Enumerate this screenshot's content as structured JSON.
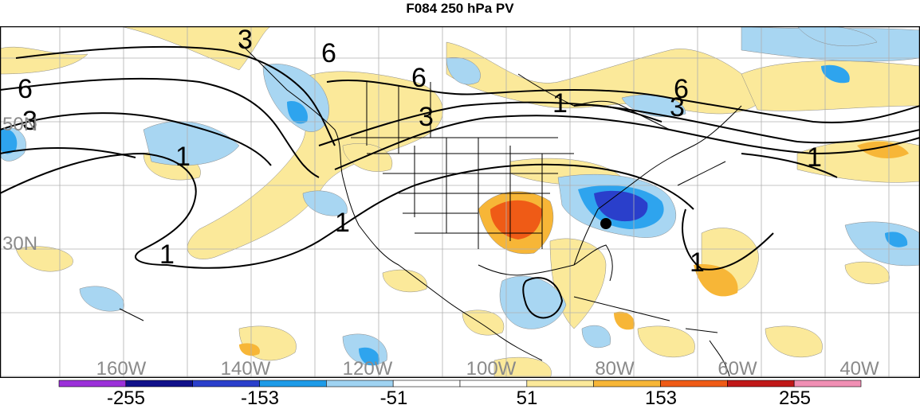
{
  "title": "F084 250 hPa PV",
  "lat_labels": [
    "50N",
    "30N"
  ],
  "lon_labels": [
    "160W",
    "140W",
    "120W",
    "100W",
    "80W",
    "60W",
    "40W"
  ],
  "contour_labels": [
    "6",
    "3",
    "6",
    "6",
    "3",
    "6",
    "3",
    "1",
    "3",
    "1",
    "1",
    "1",
    "1",
    "1"
  ],
  "colorbar": {
    "tick_labels": [
      "-255",
      "-153",
      "-51",
      "51",
      "153",
      "255"
    ],
    "colors": [
      "#9b30d9",
      "#10108a",
      "#2a3fcb",
      "#1e9be8",
      "#9fd3f2",
      "#ffffff",
      "#ffffff",
      "#fbe99a",
      "#f7b637",
      "#ef5b16",
      "#c01818",
      "#f08fb4"
    ]
  },
  "fill_colors": {
    "light_blue": "#a8d6f2",
    "blue": "#2ea4ee",
    "dark_blue": "#2a3fcb",
    "light_yellow": "#fbe99a",
    "orange": "#f7b637",
    "red_orange": "#ef5b16"
  }
}
